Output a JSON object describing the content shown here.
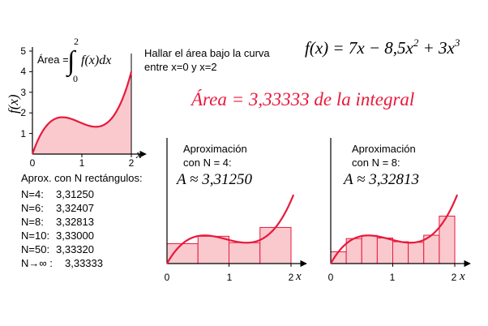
{
  "formula": {
    "lhs": "f(x) = 7x − 8,5x",
    "exp1": "2",
    "mid": " + 3x",
    "exp2": "3"
  },
  "task": {
    "line1": "Hallar el área bajo la curva",
    "line2": "entre x=0 y x=2"
  },
  "result": "Área = 3,33333  de la integral",
  "main_plot": {
    "area_label": "Área =",
    "integral_upper": "2",
    "integral_lower": "0",
    "integrand": "f(x)dx",
    "ylabel": "f(x)",
    "xlabel": "x",
    "y_ticks": [
      "1",
      "2",
      "3",
      "4",
      "5"
    ],
    "x_ticks": [
      "0",
      "1",
      "2"
    ]
  },
  "approx_table": {
    "title": "Aprox. con  N rectángulos:",
    "rows": [
      {
        "n": "N=4:",
        "value": "3,31250"
      },
      {
        "n": "N=6:",
        "value": "3,32407"
      },
      {
        "n": "N=8:",
        "value": "3,32813"
      },
      {
        "n": "N=10:",
        "value": "3,33000"
      },
      {
        "n": "N=50:",
        "value": "3,33320"
      },
      {
        "n": "N→∞  :",
        "value": "3,33333"
      }
    ]
  },
  "approx4": {
    "title": "Aproximación",
    "subtitle": "con N = 4:",
    "value": "A ≈ 3,31250",
    "xlabel": "x",
    "x_ticks": [
      "0",
      "1",
      "2"
    ]
  },
  "approx8": {
    "title": "Aproximación",
    "subtitle": "con N = 8:",
    "value": "A ≈ 3,32813",
    "xlabel": "x",
    "x_ticks": [
      "0",
      "1",
      "2"
    ]
  },
  "colors": {
    "curve": "#e8193c",
    "fill": "#f9c9ce",
    "result_text": "#e8193c",
    "ink": "#000000"
  }
}
